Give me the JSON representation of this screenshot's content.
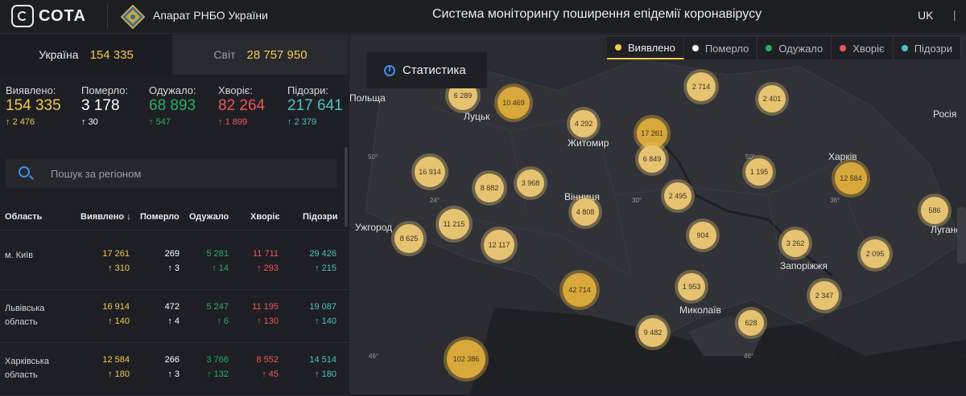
{
  "header": {
    "logo": "СОТА",
    "org": "Апарат РНБО України",
    "title": "Система моніторингу поширення епідемії коронавірусу",
    "lang": "UK"
  },
  "scope": {
    "ukraine_label": "Україна",
    "ukraine_value": "154 335",
    "world_label": "Світ",
    "world_value": "28 757 950"
  },
  "stats": [
    {
      "label": "Виявлено:",
      "value": "154 335",
      "delta": "2 476",
      "color": "#f2c94c"
    },
    {
      "label": "Померло:",
      "value": "3 178",
      "delta": "30",
      "color": "#ffffff"
    },
    {
      "label": "Одужало:",
      "value": "68 893",
      "delta": "547",
      "color": "#27ae60"
    },
    {
      "label": "Хворіє:",
      "value": "82 264",
      "delta": "1 899",
      "color": "#eb5757"
    },
    {
      "label": "Підозри:",
      "value": "217 641",
      "delta": "2 379",
      "color": "#4fc1c4"
    }
  ],
  "search": {
    "placeholder": "Пошук за регіоном"
  },
  "table": {
    "headers": [
      "Область",
      "Виявлено",
      "Померло",
      "Одужало",
      "Хворіє",
      "Підозри"
    ],
    "rows": [
      {
        "region": "м. Київ",
        "detected": "17 261",
        "detected_d": "310",
        "dead": "269",
        "dead_d": "3",
        "recovered": "5 281",
        "recovered_d": "14",
        "sick": "11 711",
        "sick_d": "293",
        "suspect": "29 426",
        "suspect_d": "215"
      },
      {
        "region": "Львівська область",
        "detected": "16 914",
        "detected_d": "140",
        "dead": "472",
        "dead_d": "4",
        "recovered": "5 247",
        "recovered_d": "6",
        "sick": "11 195",
        "sick_d": "130",
        "suspect": "19 087",
        "suspect_d": "140"
      },
      {
        "region": "Харківська область",
        "detected": "12 584",
        "detected_d": "180",
        "dead": "266",
        "dead_d": "3",
        "recovered": "3 766",
        "recovered_d": "132",
        "sick": "8 552",
        "sick_d": "45",
        "suspect": "14 514",
        "suspect_d": "180"
      }
    ]
  },
  "map": {
    "button": "Статистика",
    "legend": [
      {
        "label": "Виявлено",
        "color": "#f2c94c"
      },
      {
        "label": "Померло",
        "color": "#ffffff"
      },
      {
        "label": "Одужало",
        "color": "#27ae60"
      },
      {
        "label": "Хворіє",
        "color": "#eb5757"
      },
      {
        "label": "Підозри",
        "color": "#4fc1c4"
      }
    ],
    "cities": [
      "Луцьк",
      "Житомир",
      "Вінниця",
      "Ужгород",
      "Харків",
      "Запоріжжя",
      "Миколаїв",
      "Луганськ",
      "Росія",
      "Польща"
    ],
    "grid_labels": [
      "50°",
      "50°",
      "24°",
      "30°",
      "36°",
      "46°",
      "46°"
    ],
    "clusters": [
      "6 289",
      "10 469",
      "2 714",
      "2 401",
      "4 292",
      "17 261",
      "6 849",
      "16 914",
      "8 882",
      "3 968",
      "1 195",
      "12 584",
      "2 495",
      "4 808",
      "11 215",
      "8 625",
      "12 117",
      "904",
      "3 262",
      "586",
      "2 095",
      "42 714",
      "1 953",
      "2 347",
      "9 482",
      "628",
      "102 386"
    ]
  }
}
